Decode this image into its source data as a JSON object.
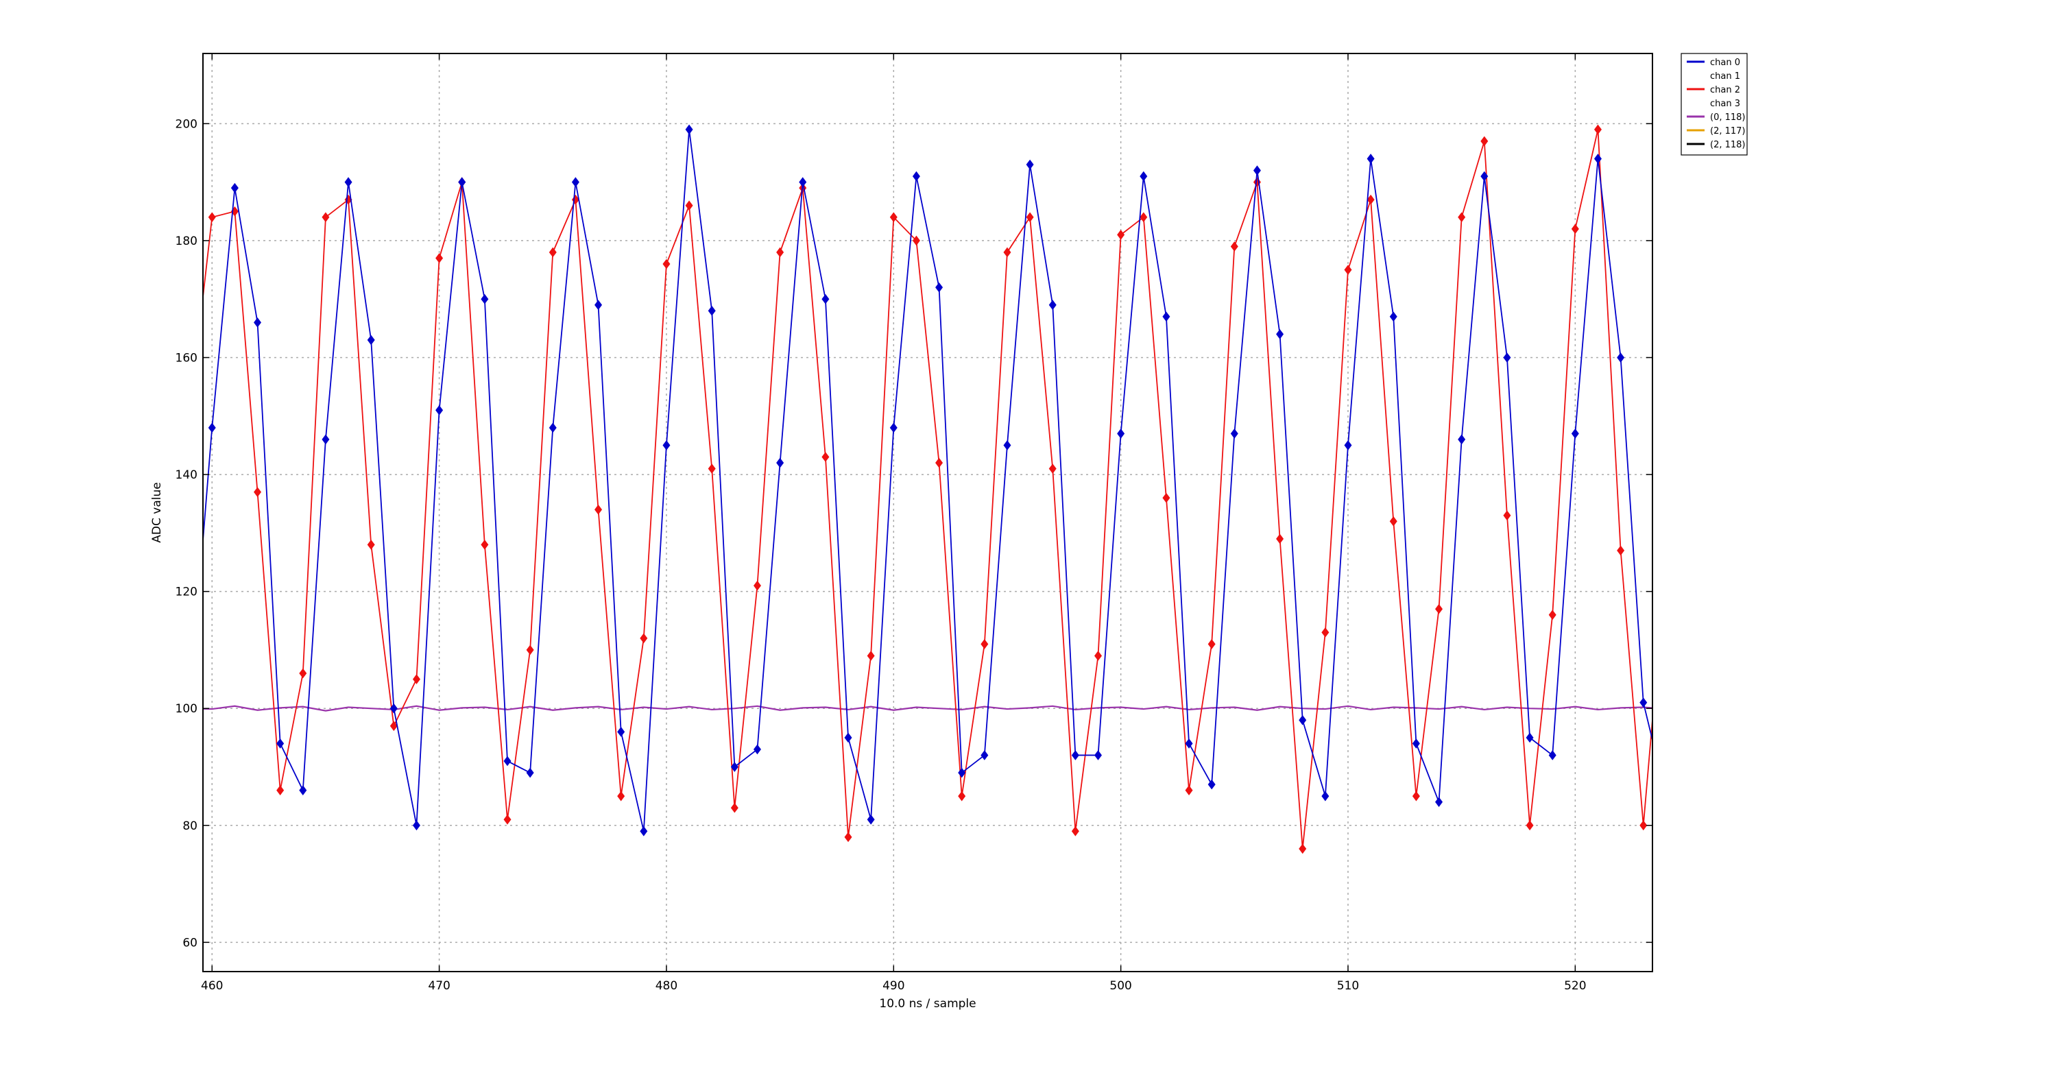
{
  "chart_data": {
    "type": "line",
    "title": "",
    "xlabel": "10.0 ns / sample",
    "ylabel": "ADC value",
    "xlim": [
      459.6,
      523.4
    ],
    "ylim": [
      55,
      212
    ],
    "xticks": [
      460,
      470,
      480,
      490,
      500,
      510,
      520
    ],
    "yticks": [
      60,
      80,
      100,
      120,
      140,
      160,
      180,
      200
    ],
    "grid": true,
    "legend_position": "outside-top-right",
    "colors": {
      "chan 0": "#0000cc",
      "chan 1": "#ffffff",
      "chan 2": "#ee1111",
      "chan 3": "#ffffff",
      "(0, 118)": "#9933aa",
      "(2, 117)": "#e6a000",
      "(2, 118)": "#000000",
      "grid": "#aaaaaa"
    },
    "legend": [
      "chan 0",
      "chan 1",
      "chan 2",
      "chan 3",
      "(0, 118)",
      "(2, 117)",
      "(2, 118)"
    ],
    "series": [
      {
        "name": "chan 0",
        "x_start": 459,
        "markers": true,
        "values": [
          100,
          148,
          189,
          166,
          94,
          86,
          146,
          190,
          163,
          100,
          80,
          151,
          190,
          170,
          91,
          89,
          148,
          190,
          169,
          96,
          79,
          145,
          199,
          168,
          90,
          93,
          142,
          190,
          170,
          95,
          81,
          148,
          191,
          172,
          89,
          92,
          145,
          193,
          169,
          92,
          92,
          147,
          191,
          167,
          94,
          87,
          147,
          192,
          164,
          98,
          85,
          145,
          194,
          167,
          94,
          84,
          146,
          191,
          160,
          95,
          92,
          147,
          194,
          160,
          101,
          85
        ]
      },
      {
        "name": "chan 2",
        "x_start": 459,
        "markers": true,
        "values": [
          150,
          184,
          185,
          137,
          86,
          106,
          184,
          187,
          128,
          97,
          105,
          177,
          190,
          128,
          81,
          110,
          178,
          187,
          134,
          85,
          112,
          176,
          186,
          141,
          83,
          121,
          178,
          189,
          143,
          78,
          109,
          184,
          180,
          142,
          85,
          111,
          178,
          184,
          141,
          79,
          109,
          181,
          184,
          136,
          86,
          111,
          179,
          190,
          129,
          76,
          113,
          175,
          187,
          132,
          85,
          117,
          184,
          197,
          133,
          80,
          116,
          182,
          199,
          127,
          80,
          125
        ]
      },
      {
        "name": "(0, 118)",
        "x_start": 459,
        "markers": false,
        "values": [
          100.0,
          99.9,
          100.4,
          99.7,
          100.1,
          100.3,
          99.6,
          100.2,
          100.0,
          99.8,
          100.4,
          99.7,
          100.1,
          100.2,
          99.8,
          100.3,
          99.7,
          100.1,
          100.3,
          99.8,
          100.2,
          99.9,
          100.3,
          99.8,
          100.0,
          100.4,
          99.7,
          100.1,
          100.2,
          99.8,
          100.3,
          99.7,
          100.2,
          100.0,
          99.8,
          100.3,
          99.9,
          100.1,
          100.4,
          99.8,
          100.1,
          100.2,
          99.9,
          100.3,
          99.8,
          100.1,
          100.2,
          99.7,
          100.3,
          100.0,
          99.9,
          100.4,
          99.8,
          100.2,
          100.1,
          99.9,
          100.3,
          99.8,
          100.2,
          100.0,
          99.9,
          100.3,
          99.8,
          100.1,
          100.2,
          99.9
        ]
      }
    ]
  }
}
